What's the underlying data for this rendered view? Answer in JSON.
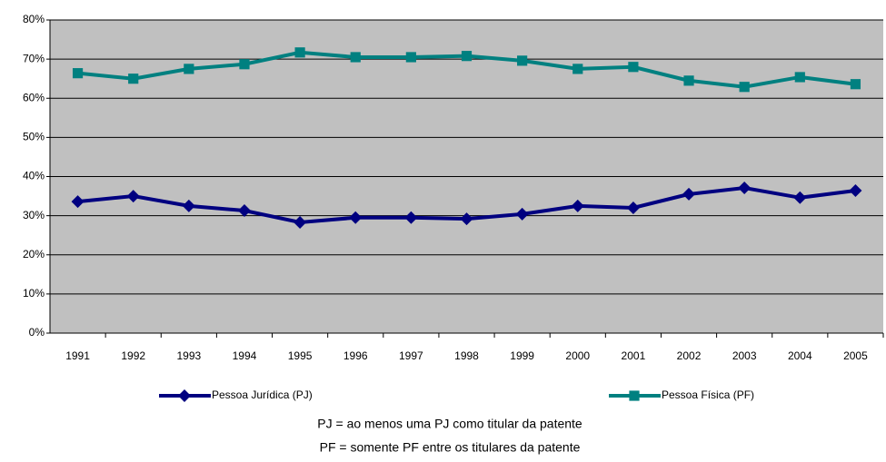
{
  "chart_data": {
    "type": "line",
    "categories": [
      "1991",
      "1992",
      "1993",
      "1994",
      "1995",
      "1996",
      "1997",
      "1998",
      "1999",
      "2000",
      "2001",
      "2002",
      "2003",
      "2004",
      "2005"
    ],
    "series": [
      {
        "name": "Pessoa Jurídica (PJ)",
        "color": "#000080",
        "marker": "diamond",
        "values": [
          33.6,
          35.0,
          32.5,
          31.3,
          28.3,
          29.5,
          29.5,
          29.2,
          30.4,
          32.5,
          32.0,
          35.5,
          37.1,
          34.6,
          36.4
        ]
      },
      {
        "name": "Pessoa Física (PF)",
        "color": "#008080",
        "marker": "square",
        "values": [
          66.4,
          65.0,
          67.5,
          68.7,
          71.7,
          70.5,
          70.5,
          70.8,
          69.6,
          67.5,
          68.0,
          64.5,
          62.9,
          65.4,
          63.6
        ]
      }
    ],
    "ylim": [
      0,
      80
    ],
    "yticks": [
      {
        "value": 0,
        "label": "0%"
      },
      {
        "value": 10,
        "label": "10%"
      },
      {
        "value": 20,
        "label": "20%"
      },
      {
        "value": 30,
        "label": "30%"
      },
      {
        "value": 40,
        "label": "40%"
      },
      {
        "value": 50,
        "label": "50%"
      },
      {
        "value": 60,
        "label": "60%"
      },
      {
        "value": 70,
        "label": "70%"
      },
      {
        "value": 80,
        "label": "80%"
      }
    ],
    "grid": true,
    "annotations": [
      "PJ = ao menos uma PJ como titular da patente",
      "PF = somente PF entre os titulares da patente"
    ]
  }
}
